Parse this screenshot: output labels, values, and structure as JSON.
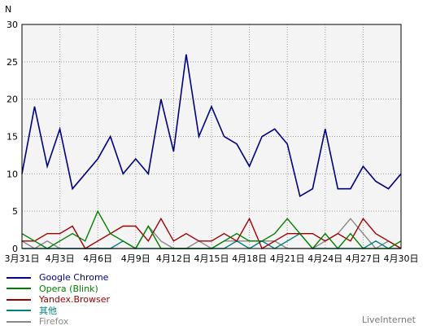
{
  "chart_data": {
    "type": "line",
    "ylabel": "N",
    "ylim": [
      0,
      30
    ],
    "yticks": [
      0,
      5,
      10,
      15,
      20,
      25,
      30
    ],
    "grid": true,
    "legend_position": "bottom-left",
    "x": [
      "3月31日",
      "4月1日",
      "4月2日",
      "4月3日",
      "4月4日",
      "4月5日",
      "4月6日",
      "4月7日",
      "4月8日",
      "4月9日",
      "4月10日",
      "4月11日",
      "4月12日",
      "4月13日",
      "4月14日",
      "4月15日",
      "4月16日",
      "4月17日",
      "4月18日",
      "4月19日",
      "4月20日",
      "4月21日",
      "4月22日",
      "4月23日",
      "4月24日",
      "4月25日",
      "4月26日",
      "4月27日",
      "4月28日",
      "4月29日",
      "4月30日"
    ],
    "xtick_labels": [
      "3月31日",
      "4月3日",
      "4月6日",
      "4月9日",
      "4月12日",
      "4月15日",
      "4月18日",
      "4月21日",
      "4月24日",
      "4月27日",
      "4月30日"
    ],
    "series": [
      {
        "name": "Google Chrome",
        "color": "#000080",
        "values": [
          10,
          19,
          11,
          16,
          8,
          10,
          12,
          15,
          10,
          12,
          10,
          20,
          13,
          26,
          15,
          19,
          15,
          14,
          11,
          15,
          16,
          14,
          7,
          8,
          16,
          8,
          8,
          11,
          9,
          8,
          10
        ]
      },
      {
        "name": "Opera (Blink)",
        "color": "#008000",
        "values": [
          2,
          1,
          0,
          1,
          2,
          1,
          5,
          2,
          1,
          0,
          3,
          0,
          0,
          0,
          0,
          0,
          1,
          2,
          1,
          1,
          2,
          4,
          2,
          0,
          2,
          0,
          2,
          0,
          0,
          0,
          1
        ]
      },
      {
        "name": "Yandex.Browser",
        "color": "#a00000",
        "values": [
          1,
          1,
          2,
          2,
          3,
          0,
          1,
          2,
          3,
          3,
          1,
          4,
          1,
          2,
          1,
          1,
          2,
          1,
          4,
          0,
          1,
          2,
          2,
          2,
          1,
          2,
          1,
          4,
          2,
          1,
          0
        ]
      },
      {
        "name": "其他",
        "color": "#008080",
        "values": [
          0,
          0,
          0,
          0,
          0,
          0,
          0,
          0,
          1,
          0,
          0,
          0,
          0,
          0,
          0,
          0,
          0,
          1,
          0,
          1,
          0,
          1,
          2,
          0,
          0,
          0,
          0,
          0,
          1,
          0,
          0
        ]
      },
      {
        "name": "Firefox",
        "color": "#888888",
        "values": [
          1,
          0,
          1,
          0,
          0,
          0,
          0,
          0,
          0,
          0,
          3,
          1,
          0,
          0,
          1,
          0,
          1,
          1,
          1,
          1,
          1,
          0,
          0,
          0,
          1,
          2,
          4,
          2,
          0,
          1,
          0
        ]
      }
    ]
  },
  "footer": {
    "brand": "LiveInternet"
  }
}
